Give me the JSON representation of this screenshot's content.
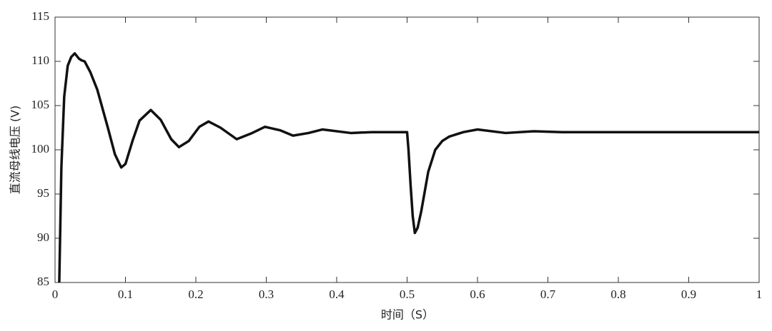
{
  "chart_data": {
    "type": "line",
    "xlabel": "时间（S）",
    "ylabel": "直流母线电压 (V)",
    "x": [
      0.006,
      0.009,
      0.013,
      0.018,
      0.023,
      0.028,
      0.034,
      0.038,
      0.042,
      0.05,
      0.06,
      0.075,
      0.085,
      0.094,
      0.1,
      0.11,
      0.12,
      0.136,
      0.15,
      0.165,
      0.176,
      0.19,
      0.205,
      0.218,
      0.235,
      0.258,
      0.28,
      0.298,
      0.32,
      0.338,
      0.36,
      0.38,
      0.42,
      0.45,
      0.49,
      0.5,
      0.502,
      0.505,
      0.508,
      0.511,
      0.515,
      0.52,
      0.53,
      0.54,
      0.55,
      0.56,
      0.58,
      0.6,
      0.64,
      0.68,
      0.72,
      0.8,
      0.9,
      1.0
    ],
    "series": [
      {
        "name": "直流母线电压",
        "color": "#111111",
        "values": [
          85,
          98,
          106,
          109.5,
          110.5,
          110.9,
          110.3,
          110.1,
          110.0,
          108.8,
          106.8,
          102.5,
          99.5,
          98.0,
          98.4,
          101.0,
          103.3,
          104.5,
          103.4,
          101.2,
          100.3,
          101.0,
          102.6,
          103.2,
          102.5,
          101.2,
          101.9,
          102.6,
          102.2,
          101.6,
          101.9,
          102.3,
          101.9,
          102.0,
          102.0,
          102.0,
          100.0,
          96.0,
          92.5,
          90.6,
          91.2,
          93.0,
          97.5,
          100.0,
          101.0,
          101.5,
          102.0,
          102.3,
          101.9,
          102.1,
          102.0,
          102.0,
          102.0,
          102.0
        ]
      }
    ],
    "xlim": [
      0,
      1
    ],
    "ylim": [
      85,
      115
    ],
    "xticks": [
      0,
      0.1,
      0.2,
      0.3,
      0.4,
      0.5,
      0.6,
      0.7,
      0.8,
      0.9,
      1
    ],
    "yticks": [
      85,
      90,
      95,
      100,
      105,
      110,
      115
    ],
    "grid": false
  }
}
